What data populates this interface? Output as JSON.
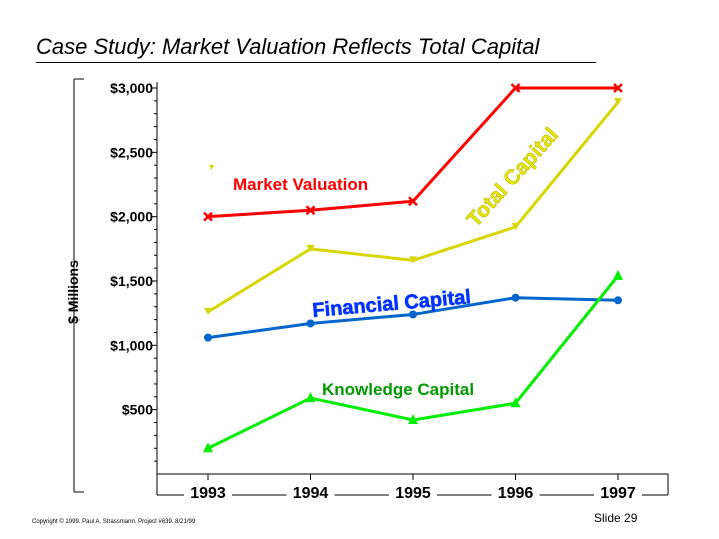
{
  "page": {
    "title": "Case Study: Market Valuation Reflects Total Capital",
    "copyright": "Copyright © 1999.  Paul A. Strassmann. Project #639.     8/21/99",
    "slide_number": "Slide 29"
  },
  "chart_data": {
    "type": "line",
    "title": "",
    "xlabel": "",
    "ylabel": "$ Millions",
    "categories": [
      "1993",
      "1994",
      "1995",
      "1996",
      "1997"
    ],
    "yticks": [
      {
        "value": 500,
        "label": "$500"
      },
      {
        "value": 1000,
        "label": "$1,000"
      },
      {
        "value": 1500,
        "label": "$1,500"
      },
      {
        "value": 2000,
        "label": "$2,000"
      },
      {
        "value": 2500,
        "label": "$2,500"
      },
      {
        "value": 3000,
        "label": "$3,000"
      }
    ],
    "ylim": [
      0,
      3000
    ],
    "grid": false,
    "series": [
      {
        "name": "Market Valuation",
        "values": [
          2000,
          2050,
          2120,
          3000,
          3000
        ],
        "color": "#ff0000",
        "marker": "x"
      },
      {
        "name": "Total Capital",
        "values": [
          1260,
          1750,
          1660,
          1920,
          2890
        ],
        "color": "#d6d600",
        "marker": "triangle-down"
      },
      {
        "name": "Financial Capital",
        "values": [
          1060,
          1170,
          1240,
          1370,
          1350
        ],
        "color": "#0066cc",
        "marker": "circle"
      },
      {
        "name": "Knowledge Capital",
        "values": [
          200,
          590,
          420,
          550,
          1540
        ],
        "color": "#00ee00",
        "marker": "triangle-up"
      }
    ],
    "series_label_colors": {
      "Market Valuation": "#ff0000",
      "Total Capital": "#e6e600",
      "Financial Capital": "#0033ff",
      "Knowledge Capital": "#009900"
    }
  }
}
